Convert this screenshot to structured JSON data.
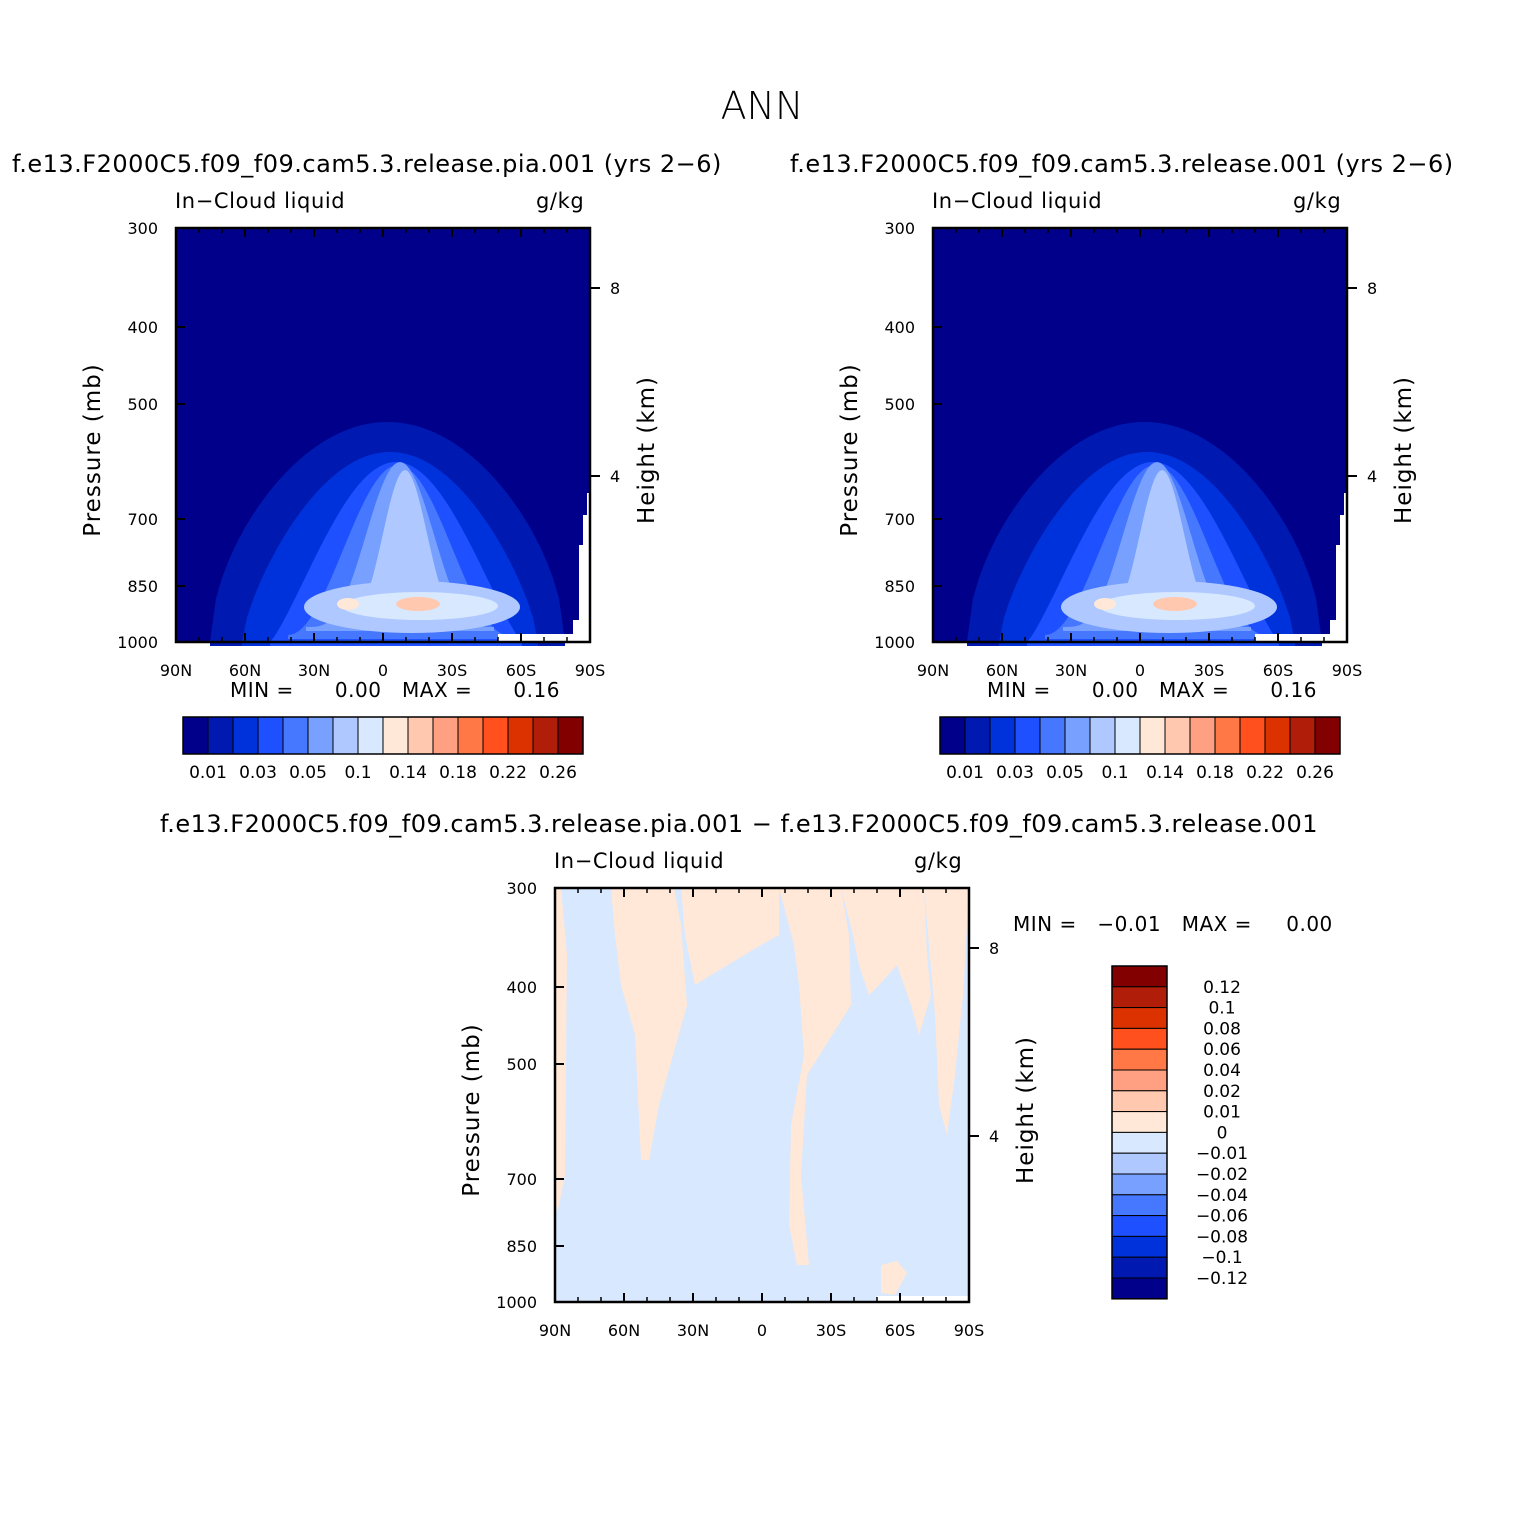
{
  "figure": {
    "title": "ANN",
    "variable_label": "In−Cloud liquid",
    "units": "g/kg"
  },
  "panels": [
    {
      "id": "test",
      "title": "f.e13.F2000C5.f09_f09.cam5.3.release.pia.001 (yrs 2−6)",
      "min_label": "MIN =",
      "min_value": "0.00",
      "max_label": "MAX =",
      "max_value": "0.16"
    },
    {
      "id": "control",
      "title": "f.e13.F2000C5.f09_f09.cam5.3.release.001 (yrs 2−6)",
      "min_label": "MIN =",
      "min_value": "0.00",
      "max_label": "MAX =",
      "max_value": "0.16"
    },
    {
      "id": "diff",
      "title": "f.e13.F2000C5.f09_f09.cam5.3.release.pia.001 − f.e13.F2000C5.f09_f09.cam5.3.release.001",
      "min_label": "MIN =",
      "min_value": "−0.01",
      "max_label": "MAX =",
      "max_value": "0.00"
    }
  ],
  "colorbars": {
    "mean": {
      "colors": [
        "#00008a",
        "#0019b0",
        "#0032dc",
        "#1e50ff",
        "#4678ff",
        "#78a0ff",
        "#afc8ff",
        "#d7e8ff",
        "#ffe8d7",
        "#ffc8af",
        "#ffa082",
        "#ff7846",
        "#ff501e",
        "#dc3200",
        "#b01e0a",
        "#820000"
      ],
      "labels": [
        "0.01",
        "0.03",
        "0.05",
        "0.1",
        "0.14",
        "0.18",
        "0.22",
        "0.26"
      ]
    },
    "diff": {
      "colors": [
        "#820000",
        "#b01e0a",
        "#dc3200",
        "#ff501e",
        "#ff7846",
        "#ffa082",
        "#ffc8af",
        "#ffe8d7",
        "#d7e8ff",
        "#afc8ff",
        "#78a0ff",
        "#4678ff",
        "#1e50ff",
        "#0032dc",
        "#0019b0",
        "#00008a"
      ],
      "labels": [
        "0.12",
        "0.1",
        "0.08",
        "0.06",
        "0.04",
        "0.02",
        "0.01",
        "0",
        "−0.01",
        "−0.02",
        "−0.04",
        "−0.06",
        "−0.08",
        "−0.1",
        "−0.12"
      ]
    }
  },
  "chart_data": [
    {
      "type": "heatmap",
      "title": "f.e13.F2000C5.f09_f09.cam5.3.release.pia.001 (yrs 2−6)",
      "xlabel": "",
      "ylabel": "Pressure (mb)",
      "y2label": "Height (km)",
      "x_ticks": [
        "90N",
        "60N",
        "30N",
        "0",
        "30S",
        "60S",
        "90S"
      ],
      "y_ticks": [
        "300",
        "400",
        "500",
        "700",
        "850",
        "1000"
      ],
      "y2_ticks": [
        "8",
        "4"
      ],
      "xlim": [
        "90N",
        "90S"
      ],
      "ylim": [
        1000,
        300
      ],
      "min": 0.0,
      "max": 0.16,
      "features": [
        {
          "description": "maximum near 850 mb",
          "lat": "15S",
          "pressure_mb": 870,
          "value": 0.16
        },
        {
          "description": "secondary maximum",
          "lat": "10N",
          "pressure_mb": 870,
          "value": 0.14
        },
        {
          "description": "deep tropical column top",
          "lat": "0",
          "pressure_mb": 500,
          "value": 0.01
        }
      ]
    },
    {
      "type": "heatmap",
      "title": "f.e13.F2000C5.f09_f09.cam5.3.release.001 (yrs 2−6)",
      "xlabel": "",
      "ylabel": "Pressure (mb)",
      "y2label": "Height (km)",
      "x_ticks": [
        "90N",
        "60N",
        "30N",
        "0",
        "30S",
        "60S",
        "90S"
      ],
      "y_ticks": [
        "300",
        "400",
        "500",
        "700",
        "850",
        "1000"
      ],
      "y2_ticks": [
        "8",
        "4"
      ],
      "xlim": [
        "90N",
        "90S"
      ],
      "ylim": [
        1000,
        300
      ],
      "min": 0.0,
      "max": 0.16,
      "features": [
        {
          "description": "maximum near 850 mb",
          "lat": "15S",
          "pressure_mb": 870,
          "value": 0.16
        },
        {
          "description": "secondary maximum",
          "lat": "10N",
          "pressure_mb": 870,
          "value": 0.14
        },
        {
          "description": "deep tropical column top",
          "lat": "0",
          "pressure_mb": 500,
          "value": 0.01
        }
      ]
    },
    {
      "type": "heatmap",
      "title": "f.e13.F2000C5.f09_f09.cam5.3.release.pia.001 − f.e13.F2000C5.f09_f09.cam5.3.release.001",
      "xlabel": "",
      "ylabel": "Pressure (mb)",
      "y2label": "Height (km)",
      "x_ticks": [
        "90N",
        "60N",
        "30N",
        "0",
        "30S",
        "60S",
        "90S"
      ],
      "y_ticks": [
        "300",
        "400",
        "500",
        "700",
        "850",
        "1000"
      ],
      "y2_ticks": [
        "8",
        "4"
      ],
      "xlim": [
        "90N",
        "90S"
      ],
      "ylim": [
        1000,
        300
      ],
      "min": -0.01,
      "max": 0.0,
      "features": [
        {
          "description": "field mostly in (-0.01, 0) bin with patches in (0, 0.01) bin"
        }
      ]
    }
  ]
}
